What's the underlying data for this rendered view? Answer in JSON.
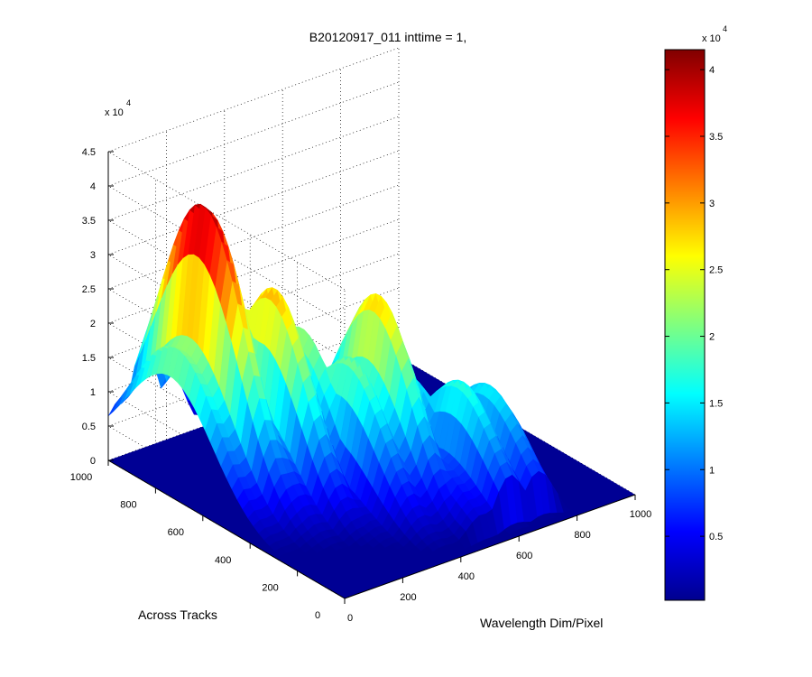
{
  "chart_data": {
    "type": "surface",
    "title": "B20120917_011 inttime = 1,",
    "xlabel": "Wavelength Dim/Pixel",
    "ylabel": "Across Tracks",
    "zlabel": "",
    "xlim": [
      0,
      1000
    ],
    "ylim": [
      0,
      1000
    ],
    "zlim": [
      0,
      45000
    ],
    "x_ticks": [
      "0",
      "200",
      "400",
      "600",
      "800",
      "1000"
    ],
    "y_ticks": [
      "0",
      "200",
      "400",
      "600",
      "800",
      "1000"
    ],
    "z_ticks": [
      "0",
      "0.5",
      "1",
      "1.5",
      "2",
      "2.5",
      "3",
      "3.5",
      "4",
      "4.5"
    ],
    "z_multiplier": "x 10",
    "z_exponent": "4",
    "colormap": "jet",
    "colorbar": {
      "range": [
        200,
        41500
      ],
      "ticks": [
        "0.5",
        "1",
        "1.5",
        "2",
        "2.5",
        "3",
        "3.5",
        "4"
      ],
      "multiplier": "x 10",
      "exponent": "4",
      "placement": "right"
    },
    "grid": "dotted",
    "peaks": [
      {
        "x": 130,
        "y": 740,
        "z": 41500
      },
      {
        "x": 260,
        "y": 600,
        "z": 30000
      },
      {
        "x": 460,
        "y": 440,
        "z": 28500
      },
      {
        "x": 640,
        "y": 250,
        "z": 18500
      }
    ]
  }
}
